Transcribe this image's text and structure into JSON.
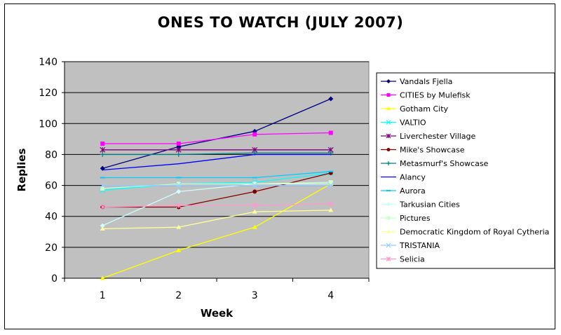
{
  "chart_data": {
    "type": "line",
    "title": "ONES TO WATCH (JULY 2007)",
    "xlabel": "Week",
    "ylabel": "Replies",
    "categories": [
      "1",
      "2",
      "3",
      "4"
    ],
    "ylim": [
      0,
      140
    ],
    "yticks": [
      0,
      20,
      40,
      60,
      80,
      100,
      120,
      140
    ],
    "grid": true,
    "legend": "right",
    "plot_background": "#c0c0c0",
    "series": [
      {
        "name": "Vandals Fjella",
        "color": "#000080",
        "marker": "diamond",
        "values": [
          71,
          85,
          95,
          116
        ]
      },
      {
        "name": "CITIES by Mulefisk",
        "color": "#ff00ff",
        "marker": "square",
        "values": [
          87,
          87,
          93,
          94
        ]
      },
      {
        "name": "Gotham City",
        "color": "#ffff00",
        "marker": "triangle",
        "values": [
          0,
          18,
          33,
          61
        ]
      },
      {
        "name": "VALTIO",
        "color": "#00ffff",
        "marker": "x",
        "values": [
          57,
          61,
          62,
          68
        ]
      },
      {
        "name": "Liverchester Village",
        "color": "#800080",
        "marker": "star",
        "values": [
          83,
          83,
          83,
          83
        ]
      },
      {
        "name": "Mike's Showcase",
        "color": "#800000",
        "marker": "circle",
        "values": [
          46,
          46,
          56,
          68
        ]
      },
      {
        "name": "Metasmurf's Showcase",
        "color": "#008080",
        "marker": "plus",
        "values": [
          80,
          80,
          81,
          81
        ]
      },
      {
        "name": "Alancy",
        "color": "#0000ff",
        "marker": "none",
        "values": [
          70,
          74,
          80,
          80
        ]
      },
      {
        "name": "Aurora",
        "color": "#00ccff",
        "marker": "dash",
        "values": [
          65,
          65,
          65,
          69
        ]
      },
      {
        "name": "Tarkusian Cities",
        "color": "#ccffff",
        "marker": "diamond",
        "values": [
          34,
          56,
          61,
          61
        ]
      },
      {
        "name": "Pictures",
        "color": "#ccffcc",
        "marker": "square",
        "values": [
          58,
          61,
          61,
          62
        ]
      },
      {
        "name": "Democratic Kingdom of Royal Cytheria",
        "color": "#ffff99",
        "marker": "triangle",
        "values": [
          32,
          33,
          43,
          44
        ]
      },
      {
        "name": "TRISTANIA",
        "color": "#99ccff",
        "marker": "x",
        "values": [
          60,
          60,
          60,
          60
        ]
      },
      {
        "name": "Selicia",
        "color": "#ff99cc",
        "marker": "star",
        "values": [
          46,
          47,
          47,
          48
        ]
      }
    ]
  }
}
